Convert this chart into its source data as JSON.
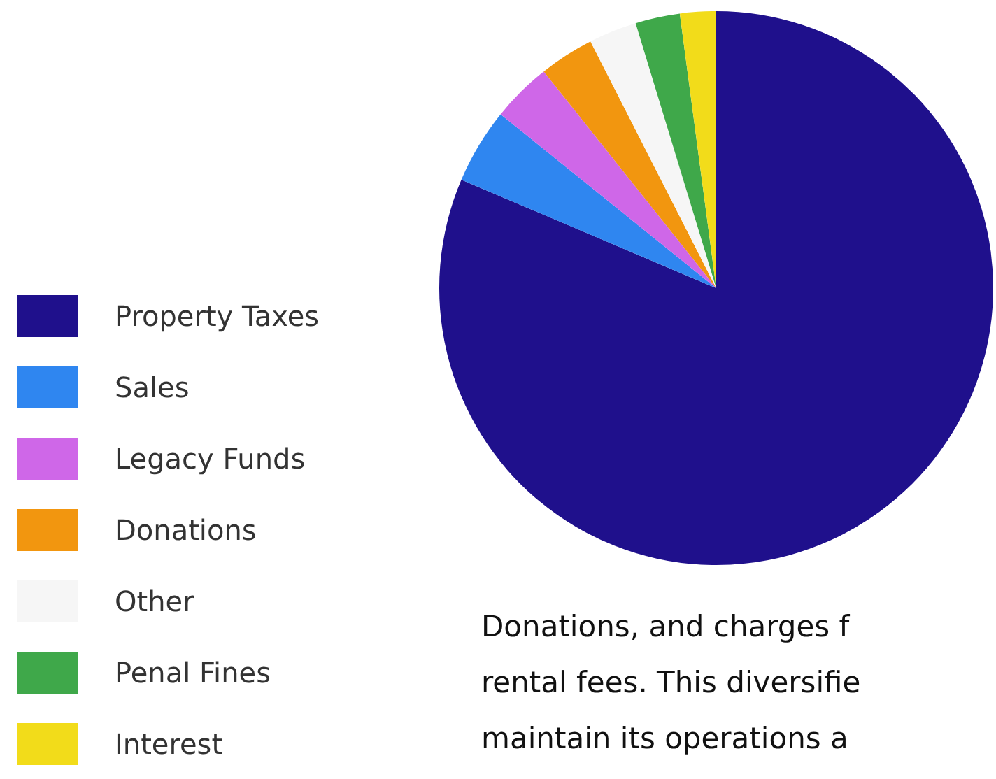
{
  "chart_data": {
    "type": "pie",
    "categories": [
      "Property Taxes",
      "Sales",
      "Legacy Funds",
      "Donations",
      "Other",
      "Penal Fines",
      "Interest"
    ],
    "values": [
      81.4,
      4.4,
      3.5,
      3.2,
      2.8,
      2.6,
      2.1
    ],
    "colors": [
      "#1f108c",
      "#2f86f0",
      "#cf67e8",
      "#f2960f",
      "#f6f6f6",
      "#3fa84a",
      "#f2dc1a"
    ],
    "legend": "left",
    "annotations": [
      "Donations, and charges f",
      "rental fees.  This diversifie",
      "maintain its operations a"
    ]
  }
}
